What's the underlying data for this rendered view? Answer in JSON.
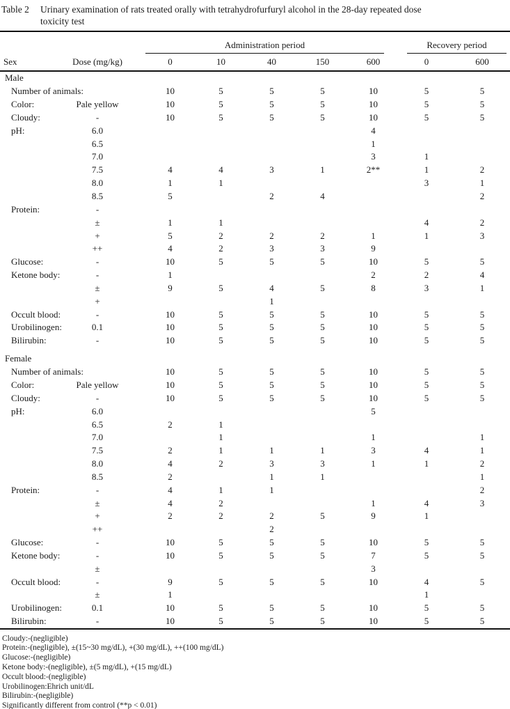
{
  "colors": {
    "ink": "#1a1a1a",
    "background": "#ffffff"
  },
  "title": {
    "label": "Table 2",
    "line1": "Urinary examination of rats treated orally with tetrahydrofurfuryl alcohol in the 28-day repeated dose",
    "line2": "toxicity test"
  },
  "header": {
    "sex": "Sex",
    "dose": "Dose (mg/kg)",
    "admin_group": "Administration period",
    "recovery_group": "Recovery period",
    "admin_cols": [
      "0",
      "10",
      "40",
      "150",
      "600"
    ],
    "recovery_cols": [
      "0",
      "600"
    ]
  },
  "sections": [
    {
      "sex": "Male",
      "rows": [
        {
          "label": "Number of animals:",
          "grade": "",
          "values": [
            "10",
            "5",
            "5",
            "5",
            "10",
            "5",
            "5"
          ]
        },
        {
          "label": "Color:",
          "grade": "Pale yellow",
          "values": [
            "10",
            "5",
            "5",
            "5",
            "10",
            "5",
            "5"
          ]
        },
        {
          "label": "Cloudy:",
          "grade": "-",
          "values": [
            "10",
            "5",
            "5",
            "5",
            "10",
            "5",
            "5"
          ]
        },
        {
          "label": "pH:",
          "grade": "6.0",
          "values": [
            "",
            "",
            "",
            "",
            "4",
            "",
            ""
          ]
        },
        {
          "label": "",
          "grade": "6.5",
          "values": [
            "",
            "",
            "",
            "",
            "1",
            "",
            ""
          ]
        },
        {
          "label": "",
          "grade": "7.0",
          "values": [
            "",
            "",
            "",
            "",
            "3",
            "1",
            ""
          ]
        },
        {
          "label": "",
          "grade": "7.5",
          "values": [
            "4",
            "4",
            "3",
            "1",
            "2**",
            "1",
            "2"
          ]
        },
        {
          "label": "",
          "grade": "8.0",
          "values": [
            "1",
            "1",
            "",
            "",
            "",
            "3",
            "1"
          ]
        },
        {
          "label": "",
          "grade": "8.5",
          "values": [
            "5",
            "",
            "2",
            "4",
            "",
            "",
            "2"
          ]
        },
        {
          "label": "Protein:",
          "grade": "-",
          "values": [
            "",
            "",
            "",
            "",
            "",
            "",
            ""
          ]
        },
        {
          "label": "",
          "grade": "±",
          "values": [
            "1",
            "1",
            "",
            "",
            "",
            "4",
            "2"
          ]
        },
        {
          "label": "",
          "grade": "+",
          "values": [
            "5",
            "2",
            "2",
            "2",
            "1",
            "1",
            "3"
          ]
        },
        {
          "label": "",
          "grade": "++",
          "values": [
            "4",
            "2",
            "3",
            "3",
            "9",
            "",
            ""
          ]
        },
        {
          "label": "Glucose:",
          "grade": "-",
          "values": [
            "10",
            "5",
            "5",
            "5",
            "10",
            "5",
            "5"
          ]
        },
        {
          "label": "Ketone body:",
          "grade": "-",
          "values": [
            "1",
            "",
            "",
            "",
            "2",
            "2",
            "4"
          ]
        },
        {
          "label": "",
          "grade": "±",
          "values": [
            "9",
            "5",
            "4",
            "5",
            "8",
            "3",
            "1"
          ]
        },
        {
          "label": "",
          "grade": "+",
          "values": [
            "",
            "",
            "1",
            "",
            "",
            "",
            ""
          ]
        },
        {
          "label": "Occult blood:",
          "grade": "-",
          "values": [
            "10",
            "5",
            "5",
            "5",
            "10",
            "5",
            "5"
          ]
        },
        {
          "label": "Urobilinogen:",
          "grade": "0.1",
          "values": [
            "10",
            "5",
            "5",
            "5",
            "10",
            "5",
            "5"
          ]
        },
        {
          "label": "Bilirubin:",
          "grade": "-",
          "values": [
            "10",
            "5",
            "5",
            "5",
            "10",
            "5",
            "5"
          ]
        }
      ]
    },
    {
      "sex": "Female",
      "rows": [
        {
          "label": "Number of animals:",
          "grade": "",
          "values": [
            "10",
            "5",
            "5",
            "5",
            "10",
            "5",
            "5"
          ]
        },
        {
          "label": "Color:",
          "grade": "Pale yellow",
          "values": [
            "10",
            "5",
            "5",
            "5",
            "10",
            "5",
            "5"
          ]
        },
        {
          "label": "Cloudy:",
          "grade": "-",
          "values": [
            "10",
            "5",
            "5",
            "5",
            "10",
            "5",
            "5"
          ]
        },
        {
          "label": "pH:",
          "grade": "6.0",
          "values": [
            "",
            "",
            "",
            "",
            "5",
            "",
            ""
          ]
        },
        {
          "label": "",
          "grade": "6.5",
          "values": [
            "2",
            "1",
            "",
            "",
            "",
            "",
            ""
          ]
        },
        {
          "label": "",
          "grade": "7.0",
          "values": [
            "",
            "1",
            "",
            "",
            "1",
            "",
            "1"
          ]
        },
        {
          "label": "",
          "grade": "7.5",
          "values": [
            "2",
            "1",
            "1",
            "1",
            "3",
            "4",
            "1"
          ]
        },
        {
          "label": "",
          "grade": "8.0",
          "values": [
            "4",
            "2",
            "3",
            "3",
            "1",
            "1",
            "2"
          ]
        },
        {
          "label": "",
          "grade": "8.5",
          "values": [
            "2",
            "",
            "1",
            "1",
            "",
            "",
            "1"
          ]
        },
        {
          "label": "Protein:",
          "grade": "-",
          "values": [
            "4",
            "1",
            "1",
            "",
            "",
            "",
            "2"
          ]
        },
        {
          "label": "",
          "grade": "±",
          "values": [
            "4",
            "2",
            "",
            "",
            "1",
            "4",
            "3"
          ]
        },
        {
          "label": "",
          "grade": "+",
          "values": [
            "2",
            "2",
            "2",
            "5",
            "9",
            "1",
            ""
          ]
        },
        {
          "label": "",
          "grade": "++",
          "values": [
            "",
            "",
            "2",
            "",
            "",
            "",
            ""
          ]
        },
        {
          "label": "Glucose:",
          "grade": "-",
          "values": [
            "10",
            "5",
            "5",
            "5",
            "10",
            "5",
            "5"
          ]
        },
        {
          "label": "Ketone body:",
          "grade": "-",
          "values": [
            "10",
            "5",
            "5",
            "5",
            "7",
            "5",
            "5"
          ]
        },
        {
          "label": "",
          "grade": "±",
          "values": [
            "",
            "",
            "",
            "",
            "3",
            "",
            ""
          ]
        },
        {
          "label": "Occult blood:",
          "grade": "-",
          "values": [
            "9",
            "5",
            "5",
            "5",
            "10",
            "4",
            "5"
          ]
        },
        {
          "label": "",
          "grade": "±",
          "values": [
            "1",
            "",
            "",
            "",
            "",
            "1",
            ""
          ]
        },
        {
          "label": "Urobilinogen:",
          "grade": "0.1",
          "values": [
            "10",
            "5",
            "5",
            "5",
            "10",
            "5",
            "5"
          ]
        },
        {
          "label": "Bilirubin:",
          "grade": "-",
          "values": [
            "10",
            "5",
            "5",
            "5",
            "10",
            "5",
            "5"
          ]
        }
      ]
    }
  ],
  "footnotes": [
    "Cloudy:-(negligible)",
    "Protein:-(negligible),  ±(15~30 mg/dL), +(30 mg/dL), ++(100 mg/dL)",
    "Glucose:-(negligible)",
    "Ketone body:-(negligible),  ±(5 mg/dL), +(15 mg/dL)",
    "Occult blood:-(negligible)",
    "Urobilinogen:Ehrich unit/dL",
    "Bilirubin:-(negligible)",
    "Significantly different from control (**p < 0.01)"
  ]
}
